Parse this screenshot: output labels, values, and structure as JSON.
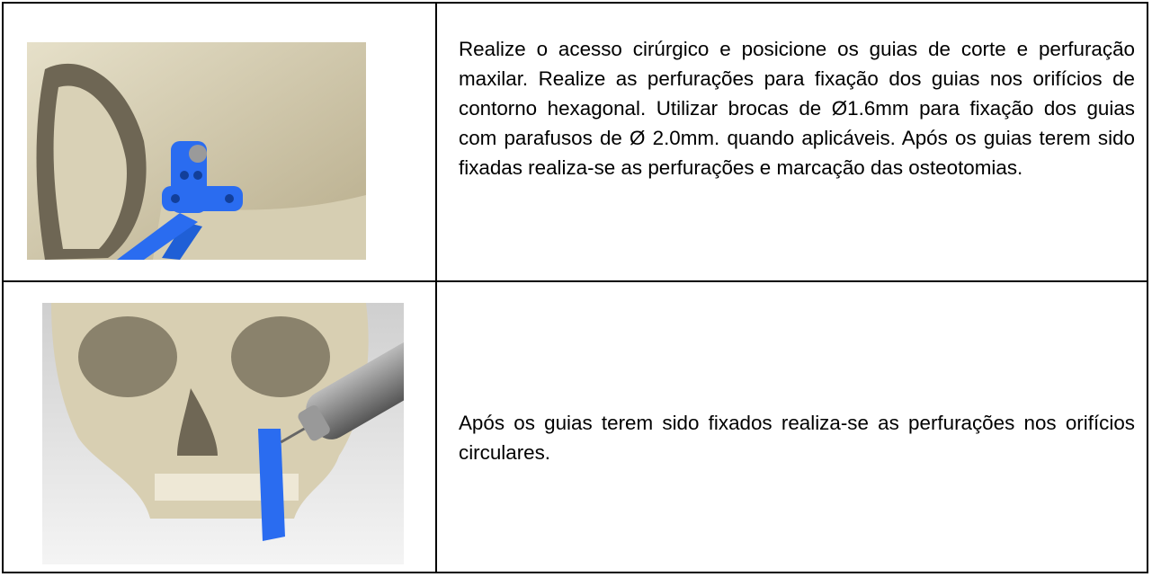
{
  "table": {
    "rows": [
      {
        "text": "Realize o acesso cirúrgico e posicione os guias de corte e perfuração maxilar. Realize as perfurações para fixação dos guias nos orifícios de contorno hexagonal. Utilizar brocas de Ø1.6mm para fixação dos guias com parafusos de Ø 2.0mm. quando aplicáveis. Após os guias terem sido fixadas realiza-se as perfurações e marcação das osteotomias."
      },
      {
        "text": "Após os guias terem sido fixados realiza-se as perfurações nos orifícios circulares."
      }
    ]
  }
}
